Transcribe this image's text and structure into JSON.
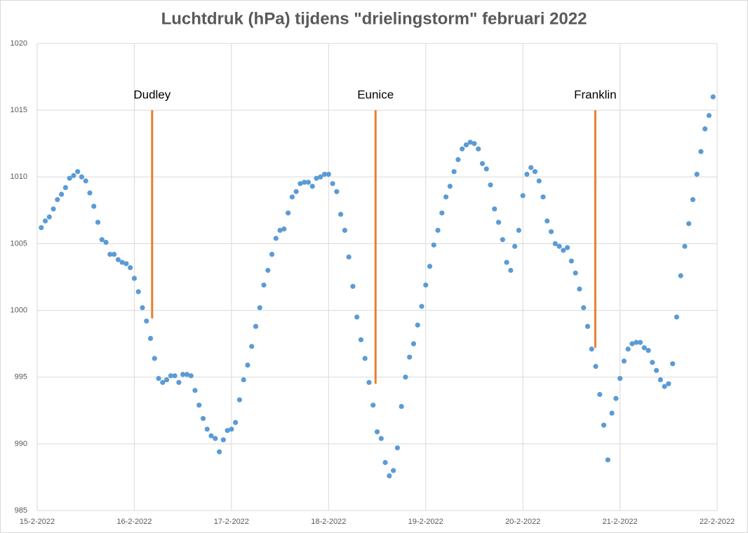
{
  "chart_data": {
    "type": "scatter",
    "title": "Luchtdruk (hPa) tijdens \"drielingstorm\" februari 2022",
    "color": "#5b9bd5",
    "grid": true,
    "xlim": [
      0,
      168
    ],
    "xticks": [
      {
        "value": 0,
        "label": "15-2-2022"
      },
      {
        "value": 24,
        "label": "16-2-2022"
      },
      {
        "value": 48,
        "label": "17-2-2022"
      },
      {
        "value": 72,
        "label": "18-2-2022"
      },
      {
        "value": 96,
        "label": "19-2-2022"
      },
      {
        "value": 120,
        "label": "20-2-2022"
      },
      {
        "value": 144,
        "label": "21-2-2022"
      },
      {
        "value": 168,
        "label": "22-2-2022"
      }
    ],
    "ylim": [
      985,
      1020
    ],
    "yticks": [
      985,
      990,
      995,
      1000,
      1005,
      1010,
      1015,
      1020
    ],
    "x": [
      1,
      2,
      3,
      4,
      5,
      6,
      7,
      8,
      9,
      10,
      11,
      12,
      13,
      14,
      15,
      16,
      17,
      18,
      19,
      20,
      21,
      22,
      23,
      24,
      25,
      26,
      27,
      28,
      29,
      30,
      31,
      32,
      33,
      34,
      35,
      36,
      37,
      38,
      39,
      40,
      41,
      42,
      43,
      44,
      45,
      46,
      47,
      48,
      49,
      50,
      51,
      52,
      53,
      54,
      55,
      56,
      57,
      58,
      59,
      60,
      61,
      62,
      63,
      64,
      65,
      66,
      67,
      68,
      69,
      70,
      71,
      72,
      73,
      74,
      75,
      76,
      77,
      78,
      79,
      80,
      81,
      82,
      83,
      84,
      85,
      86,
      87,
      88,
      89,
      90,
      91,
      92,
      93,
      94,
      95,
      96,
      97,
      98,
      99,
      100,
      101,
      102,
      103,
      104,
      105,
      106,
      107,
      108,
      109,
      110,
      111,
      112,
      113,
      114,
      115,
      116,
      117,
      118,
      119,
      120,
      121,
      122,
      123,
      124,
      125,
      126,
      127,
      128,
      129,
      130,
      131,
      132,
      133,
      134,
      135,
      136,
      137,
      138,
      139,
      140,
      141,
      142,
      143,
      144,
      145,
      146,
      147,
      148,
      149,
      150,
      151,
      152,
      153,
      154,
      155,
      156,
      157,
      158,
      159,
      160,
      161,
      162,
      163,
      164,
      165,
      166,
      167
    ],
    "values": [
      1006.2,
      1006.7,
      1007.0,
      1007.6,
      1008.3,
      1008.7,
      1009.2,
      1009.9,
      1010.1,
      1010.4,
      1010.0,
      1009.7,
      1008.8,
      1007.8,
      1006.6,
      1005.3,
      1005.1,
      1004.2,
      1004.2,
      1003.8,
      1003.6,
      1003.5,
      1003.2,
      1002.4,
      1001.4,
      1000.2,
      999.2,
      997.9,
      996.4,
      994.9,
      994.6,
      994.8,
      995.1,
      995.1,
      994.6,
      995.2,
      995.2,
      995.1,
      994.0,
      992.9,
      991.9,
      991.1,
      990.6,
      990.4,
      989.4,
      990.3,
      991.0,
      991.1,
      991.6,
      993.3,
      994.8,
      995.9,
      997.3,
      998.8,
      1000.2,
      1001.9,
      1003.0,
      1004.2,
      1005.4,
      1006.0,
      1006.1,
      1007.3,
      1008.5,
      1008.9,
      1009.5,
      1009.6,
      1009.6,
      1009.3,
      1009.9,
      1010.0,
      1010.2,
      1010.2,
      1009.5,
      1008.9,
      1007.2,
      1006.0,
      1004.0,
      1001.8,
      999.5,
      997.8,
      996.4,
      994.6,
      992.9,
      990.9,
      990.4,
      988.6,
      987.6,
      988.0,
      989.7,
      992.8,
      995.0,
      996.5,
      997.5,
      998.9,
      1000.3,
      1001.9,
      1003.3,
      1004.9,
      1006.0,
      1007.3,
      1008.5,
      1009.3,
      1010.4,
      1011.3,
      1012.1,
      1012.4,
      1012.6,
      1012.5,
      1012.1,
      1011.0,
      1010.6,
      1009.4,
      1007.6,
      1006.6,
      1005.3,
      1003.6,
      1003.0,
      1004.8,
      1006.0,
      1008.6,
      1010.2,
      1010.7,
      1010.4,
      1009.7,
      1008.5,
      1006.7,
      1005.9,
      1005.0,
      1004.8,
      1004.5,
      1004.7,
      1003.7,
      1002.8,
      1001.6,
      1000.2,
      998.8,
      997.1,
      995.8,
      993.7,
      991.4,
      988.8,
      992.3,
      993.4,
      994.9,
      996.2,
      997.1,
      997.5,
      997.6,
      997.6,
      997.2,
      997.0,
      996.1,
      995.5,
      994.8,
      994.3,
      994.5,
      996.0,
      999.5,
      1002.6,
      1004.8,
      1006.5,
      1008.3,
      1010.2,
      1011.9,
      1013.6,
      1014.6,
      1016.0
    ],
    "annotations": [
      {
        "text": "Dudley",
        "color": "#ed7d31",
        "x": 28.4,
        "y_from": 999.4,
        "y_to": 1015
      },
      {
        "text": "Eunice",
        "color": "#ed7d31",
        "x": 83.6,
        "y_from": 994.5,
        "y_to": 1015
      },
      {
        "text": "Franklin",
        "color": "#ed7d31",
        "x": 137.9,
        "y_from": 997.2,
        "y_to": 1015
      }
    ]
  }
}
